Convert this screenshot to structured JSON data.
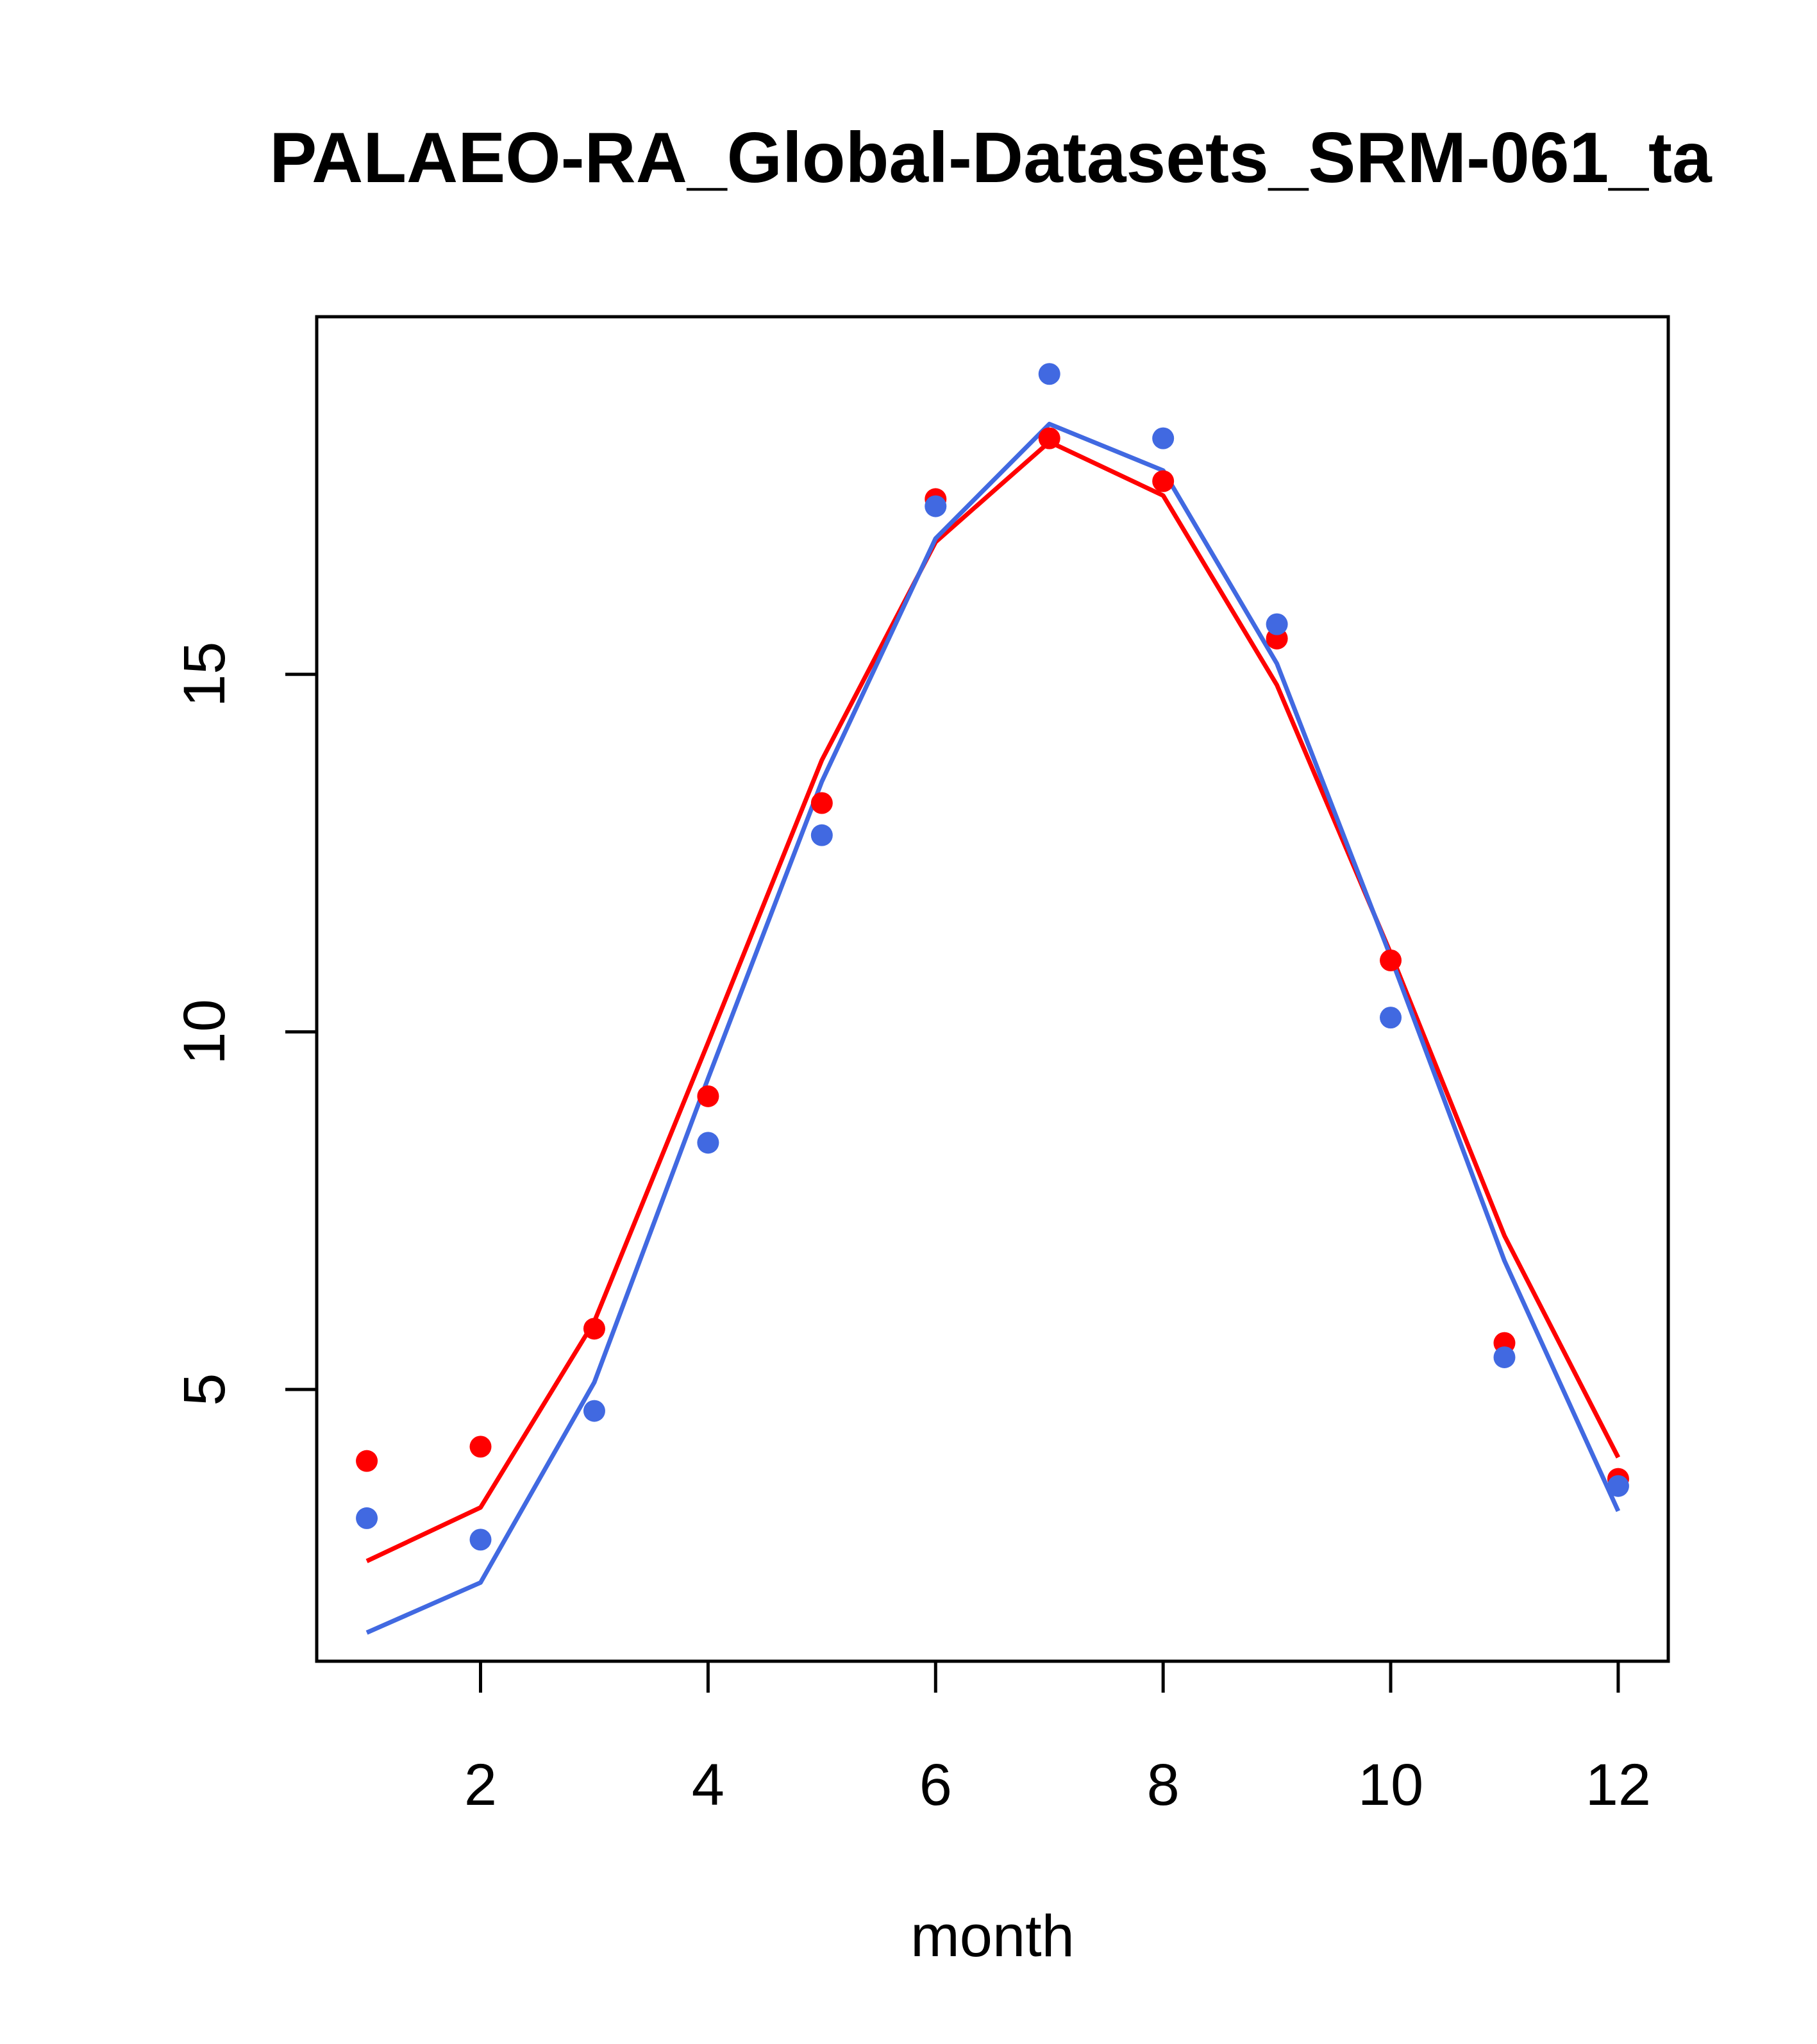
{
  "chart_data": {
    "type": "line",
    "title": "PALAEO-RA_Global-Datasets_SRM-061_ta",
    "xlabel": "month",
    "ylabel": "",
    "xlim": [
      0.56,
      12.44
    ],
    "ylim": [
      1.2,
      20.0
    ],
    "x_ticks": [
      2,
      4,
      6,
      8,
      10,
      12
    ],
    "x_tick_labels": [
      "2",
      "4",
      "6",
      "8",
      "10",
      "12"
    ],
    "y_ticks": [
      5,
      10,
      15
    ],
    "y_tick_labels": [
      "5",
      "10",
      "15"
    ],
    "grid": false,
    "legend": "none",
    "x": [
      1,
      2,
      3,
      4,
      5,
      6,
      7,
      8,
      9,
      10,
      11,
      12
    ],
    "series": [
      {
        "name": "red line",
        "kind": "line",
        "color": "#ff0000",
        "values": [
          2.6,
          3.35,
          5.95,
          9.85,
          13.8,
          16.85,
          18.25,
          17.5,
          14.85,
          11.1,
          7.15,
          4.05
        ]
      },
      {
        "name": "blue line",
        "kind": "line",
        "color": "#4169e1",
        "values": [
          1.6,
          2.3,
          5.1,
          9.35,
          13.5,
          16.9,
          18.5,
          17.85,
          15.15,
          11.05,
          6.8,
          3.3
        ]
      },
      {
        "name": "red points",
        "kind": "points",
        "color": "#ff0000",
        "values": [
          4.0,
          4.2,
          5.85,
          9.1,
          13.2,
          17.45,
          18.3,
          17.7,
          15.5,
          11.0,
          5.65,
          3.75
        ]
      },
      {
        "name": "blue points",
        "kind": "points",
        "color": "#4169e1",
        "values": [
          3.2,
          2.9,
          4.7,
          8.45,
          12.75,
          17.35,
          19.2,
          18.3,
          15.7,
          10.2,
          5.45,
          3.65
        ]
      }
    ]
  }
}
